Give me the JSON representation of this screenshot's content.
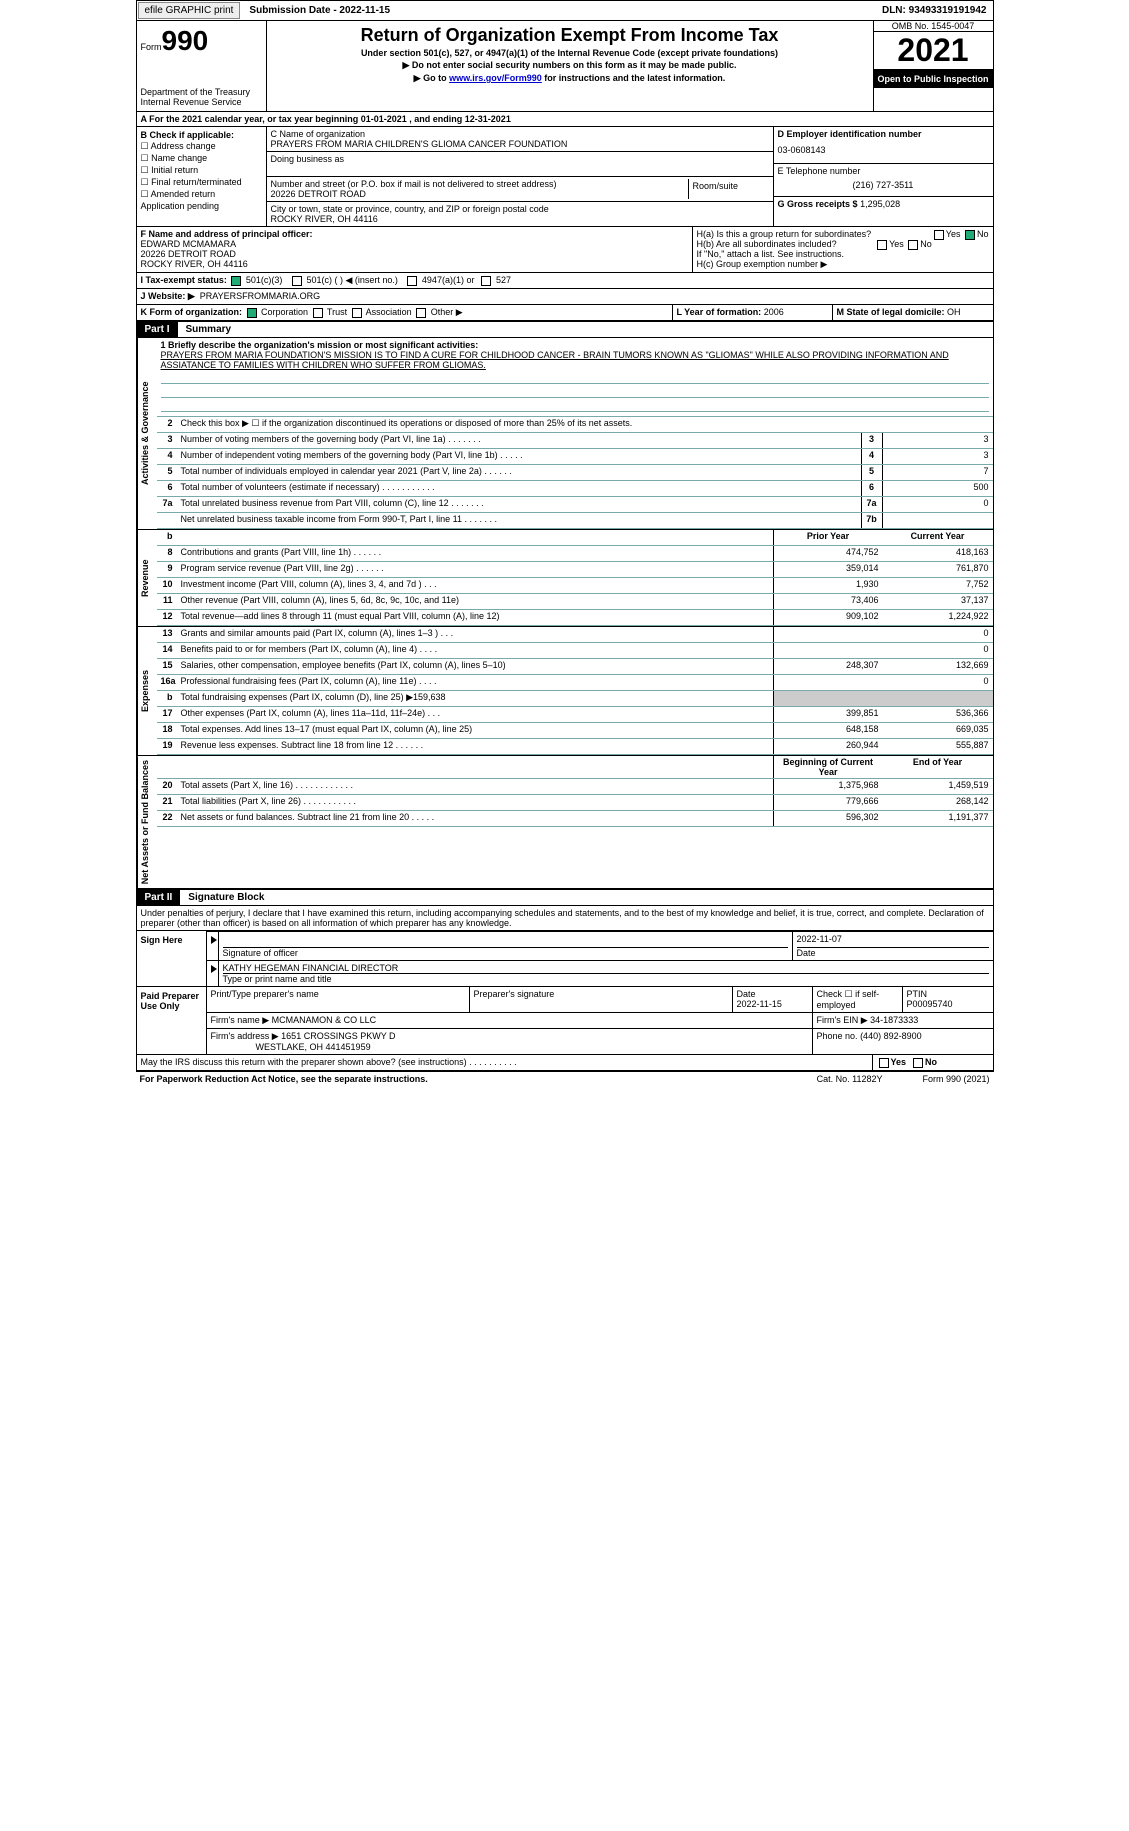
{
  "top_bar": {
    "efile": "efile GRAPHIC print",
    "sub_label": "Submission Date - 2022-11-15",
    "dln": "DLN: 93493319191942"
  },
  "header": {
    "form_word": "Form",
    "form_no": "990",
    "dept": "Department of the Treasury Internal Revenue Service",
    "title": "Return of Organization Exempt From Income Tax",
    "subtitle": "Under section 501(c), 527, or 4947(a)(1) of the Internal Revenue Code (except private foundations)",
    "note1": "▶ Do not enter social security numbers on this form as it may be made public.",
    "note2_pre": "▶ Go to ",
    "note2_link": "www.irs.gov/Form990",
    "note2_post": " for instructions and the latest information.",
    "omb": "OMB No. 1545-0047",
    "year": "2021",
    "otp": "Open to Public Inspection"
  },
  "row_a": "A For the 2021 calendar year, or tax year beginning 01-01-2021   , and ending 12-31-2021",
  "section_b": {
    "b_label": "B Check if applicable:",
    "b_items": [
      "☐ Address change",
      "☐ Name change",
      "☐ Initial return",
      "☐ Final return/terminated",
      "☐ Amended return",
      "  Application pending"
    ],
    "c_label": "C Name of organization",
    "c_name": "PRAYERS FROM MARIA CHILDREN'S GLIOMA CANCER FOUNDATION",
    "dba_label": "Doing business as",
    "addr_label": "Number and street (or P.O. box if mail is not delivered to street address)",
    "room_label": "Room/suite",
    "addr": "20226 DETROIT ROAD",
    "city_label": "City or town, state or province, country, and ZIP or foreign postal code",
    "city": "ROCKY RIVER, OH  44116",
    "d_label": "D Employer identification number",
    "d_val": "03-0608143",
    "e_label": "E Telephone number",
    "e_val": "(216) 727-3511",
    "g_label": "G Gross receipts $",
    "g_val": "1,295,028"
  },
  "section_fh": {
    "f_label": "F Name and address of principal officer:",
    "f_name": "EDWARD MCMAMARA",
    "f_addr1": "20226 DETROIT ROAD",
    "f_addr2": "ROCKY RIVER, OH  44116",
    "ha": "H(a)  Is this a group return for subordinates?",
    "hb": "H(b)  Are all subordinates included?",
    "hb_note": "If \"No,\" attach a list. See instructions.",
    "hc": "H(c)  Group exemption number ▶",
    "yes": "Yes",
    "no": "No"
  },
  "row_i": {
    "label": "I   Tax-exempt status:",
    "opts": [
      "501(c)(3)",
      "501(c) (  ) ◀ (insert no.)",
      "4947(a)(1) or",
      "527"
    ]
  },
  "row_j": {
    "label": "J   Website: ▶",
    "val": "PRAYERSFROMMARIA.ORG"
  },
  "row_k": {
    "k_label": "K Form of organization:",
    "k_opts": [
      "Corporation",
      "Trust",
      "Association",
      "Other ▶"
    ],
    "l_label": "L Year of formation:",
    "l_val": "2006",
    "m_label": "M State of legal domicile:",
    "m_val": "OH"
  },
  "part1": {
    "num": "Part I",
    "title": "Summary",
    "vtabs": [
      "Activities & Governance",
      "Revenue",
      "Expenses",
      "Net Assets or Fund Balances"
    ],
    "q1_label": "1   Briefly describe the organization's mission or most significant activities:",
    "q1_text": "PRAYERS FROM MARIA FOUNDATION'S MISSION IS TO FIND A CURE FOR CHILDHOOD CANCER - BRAIN TUMORS KNOWN AS \"GLIOMAS\" WHILE ALSO PROVIDING INFORMATION AND ASSIATANCE TO FAMILIES WITH CHILDREN WHO SUFFER FROM GLIOMAS.",
    "q2": "Check this box ▶ ☐  if the organization discontinued its operations or disposed of more than 25% of its net assets.",
    "rows_single": [
      {
        "n": "3",
        "lbl": "Number of voting members of the governing body (Part VI, line 1a)  .   .   .   .   .   .   .",
        "box": "3",
        "val": "3"
      },
      {
        "n": "4",
        "lbl": "Number of independent voting members of the governing body (Part VI, line 1b)  .   .   .   .   .",
        "box": "4",
        "val": "3"
      },
      {
        "n": "5",
        "lbl": "Total number of individuals employed in calendar year 2021 (Part V, line 2a)  .   .   .   .   .   .",
        "box": "5",
        "val": "7"
      },
      {
        "n": "6",
        "lbl": "Total number of volunteers (estimate if necessary)   .   .   .   .   .   .   .   .   .   .   .",
        "box": "6",
        "val": "500"
      },
      {
        "n": "7a",
        "lbl": "Total unrelated business revenue from Part VIII, column (C), line 12  .   .   .   .   .   .   .",
        "box": "7a",
        "val": "0"
      },
      {
        "n": "",
        "lbl": "Net unrelated business taxable income from Form 990-T, Part I, line 11  .   .   .   .   .   .   .",
        "box": "7b",
        "val": ""
      }
    ],
    "col_hdr": {
      "prior": "Prior Year",
      "current": "Current Year"
    },
    "rows_rev": [
      {
        "n": "8",
        "lbl": "Contributions and grants (Part VIII, line 1h)   .   .   .   .   .   .",
        "p": "474,752",
        "c": "418,163"
      },
      {
        "n": "9",
        "lbl": "Program service revenue (Part VIII, line 2g)   .   .   .   .   .   .",
        "p": "359,014",
        "c": "761,870"
      },
      {
        "n": "10",
        "lbl": "Investment income (Part VIII, column (A), lines 3, 4, and 7d )   .   .   .",
        "p": "1,930",
        "c": "7,752"
      },
      {
        "n": "11",
        "lbl": "Other revenue (Part VIII, column (A), lines 5, 6d, 8c, 9c, 10c, and 11e)",
        "p": "73,406",
        "c": "37,137"
      },
      {
        "n": "12",
        "lbl": "Total revenue—add lines 8 through 11 (must equal Part VIII, column (A), line 12)",
        "p": "909,102",
        "c": "1,224,922"
      }
    ],
    "rows_exp": [
      {
        "n": "13",
        "lbl": "Grants and similar amounts paid (Part IX, column (A), lines 1–3 )   .   .   .",
        "p": "",
        "c": "0"
      },
      {
        "n": "14",
        "lbl": "Benefits paid to or for members (Part IX, column (A), line 4)   .   .   .   .",
        "p": "",
        "c": "0"
      },
      {
        "n": "15",
        "lbl": "Salaries, other compensation, employee benefits (Part IX, column (A), lines 5–10)",
        "p": "248,307",
        "c": "132,669"
      },
      {
        "n": "16a",
        "lbl": "Professional fundraising fees (Part IX, column (A), line 11e)   .   .   .   .",
        "p": "",
        "c": "0"
      },
      {
        "n": "b",
        "lbl": "Total fundraising expenses (Part IX, column (D), line 25) ▶159,638",
        "p": "grey",
        "c": "grey"
      },
      {
        "n": "17",
        "lbl": "Other expenses (Part IX, column (A), lines 11a–11d, 11f–24e)   .   .   .",
        "p": "399,851",
        "c": "536,366"
      },
      {
        "n": "18",
        "lbl": "Total expenses. Add lines 13–17 (must equal Part IX, column (A), line 25)",
        "p": "648,158",
        "c": "669,035"
      },
      {
        "n": "19",
        "lbl": "Revenue less expenses. Subtract line 18 from line 12   .   .   .   .   .   .",
        "p": "260,944",
        "c": "555,887"
      }
    ],
    "col_hdr2": {
      "prior": "Beginning of Current Year",
      "current": "End of Year"
    },
    "rows_net": [
      {
        "n": "20",
        "lbl": "Total assets (Part X, line 16)  .   .   .   .   .   .   .   .   .   .   .   .",
        "p": "1,375,968",
        "c": "1,459,519"
      },
      {
        "n": "21",
        "lbl": "Total liabilities (Part X, line 26)  .   .   .   .   .   .   .   .   .   .   .",
        "p": "779,666",
        "c": "268,142"
      },
      {
        "n": "22",
        "lbl": "Net assets or fund balances. Subtract line 21 from line 20  .   .   .   .   .",
        "p": "596,302",
        "c": "1,191,377"
      }
    ]
  },
  "part2": {
    "num": "Part II",
    "title": "Signature Block",
    "perjury": "Under penalties of perjury, I declare that I have examined this return, including accompanying schedules and statements, and to the best of my knowledge and belief, it is true, correct, and complete. Declaration of preparer (other than officer) is based on all information of which preparer has any knowledge.",
    "sign_here": "Sign Here",
    "sig_officer": "Signature of officer",
    "sig_date": "2022-11-07",
    "date_lbl": "Date",
    "printed": "KATHY HEGEMAN  FINANCIAL DIRECTOR",
    "printed_lbl": "Type or print name and title",
    "paid_prep": "Paid Preparer Use Only",
    "prep_name_lbl": "Print/Type preparer's name",
    "prep_sig_lbl": "Preparer's signature",
    "prep_date_lbl": "Date",
    "prep_date": "2022-11-15",
    "check_lbl": "Check ☐ if self-employed",
    "ptin_lbl": "PTIN",
    "ptin": "P00095740",
    "firm_name_lbl": "Firm's name   ▶",
    "firm_name": "MCMANAMON & CO LLC",
    "firm_ein_lbl": "Firm's EIN ▶",
    "firm_ein": "34-1873333",
    "firm_addr_lbl": "Firm's address ▶",
    "firm_addr": "1651 CROSSINGS PKWY D",
    "firm_city": "WESTLAKE, OH  441451959",
    "phone_lbl": "Phone no.",
    "phone": "(440) 892-8900",
    "discuss": "May the IRS discuss this return with the preparer shown above? (see instructions)   .   .   .   .   .   .   .   .   .   .",
    "yes": "Yes",
    "no": "No"
  },
  "footer": {
    "l": "For Paperwork Reduction Act Notice, see the separate instructions.",
    "m": "Cat. No. 11282Y",
    "r": "Form 990 (2021)"
  }
}
